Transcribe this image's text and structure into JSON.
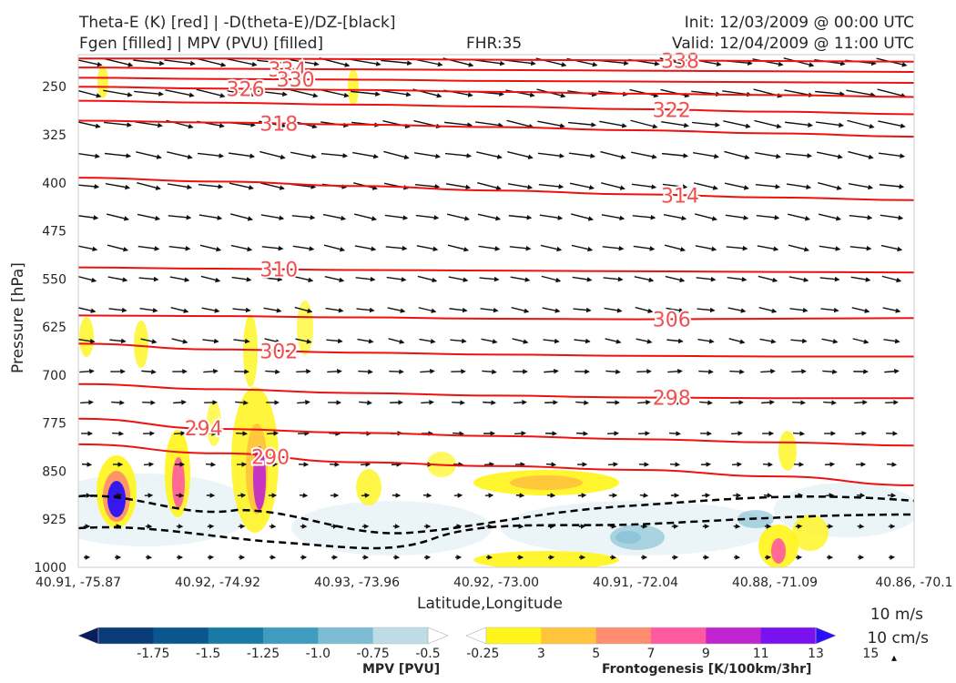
{
  "header": {
    "title_line1": "Theta-E (K) [red] | -D(theta-E)/DZ-[black]",
    "title_line2": "Fgen [filled] | MPV (PVU) [filled]",
    "fhr": "FHR:35",
    "init": "Init: 12/03/2009 @ 00:00 UTC",
    "valid": "Valid: 12/04/2009 @ 11:00 UTC"
  },
  "chart_data": {
    "type": "cross-section",
    "xlabel": "Latitude,Longitude",
    "ylabel": "Pressure [hPa]",
    "x_ticks": [
      "40.91, -75.87",
      "40.92, -74.92",
      "40.93, -73.96",
      "40.92, -73.00",
      "40.91, -72.04",
      "40.88, -71.09",
      "40.86, -70.1"
    ],
    "y_ticks": [
      250,
      325,
      400,
      475,
      550,
      625,
      700,
      775,
      850,
      925,
      1000
    ],
    "ylim": [
      200,
      1000
    ],
    "theta_e_contours": [
      {
        "label": "338",
        "p": [
          206,
          206,
          207,
          208,
          209,
          210,
          211
        ]
      },
      {
        "label": "334",
        "p": [
          220,
          222,
          223,
          224,
          225,
          226,
          227
        ]
      },
      {
        "label": "330",
        "p": [
          236,
          238,
          239,
          241,
          242,
          243,
          244
        ]
      },
      {
        "label": "326",
        "p": [
          250,
          253,
          255,
          258,
          261,
          263,
          266
        ]
      },
      {
        "label": "322",
        "p": [
          272,
          275,
          278,
          281,
          285,
          289,
          293
        ]
      },
      {
        "label": "318",
        "p": [
          303,
          306,
          309,
          313,
          318,
          323,
          328
        ]
      },
      {
        "label": "314",
        "p": [
          392,
          398,
          405,
          412,
          418,
          423,
          427
        ]
      },
      {
        "label": "310",
        "p": [
          532,
          534,
          536,
          537,
          538,
          539,
          540
        ]
      },
      {
        "label": "306",
        "p": [
          607,
          608,
          610,
          612,
          613,
          612,
          611
        ]
      },
      {
        "label": "302",
        "p": [
          651,
          660,
          665,
          668,
          670,
          671,
          671
        ]
      },
      {
        "label": "298",
        "p": [
          714,
          722,
          728,
          732,
          735,
          736,
          736
        ]
      },
      {
        "label": "294",
        "p": [
          768,
          784,
          790,
          795,
          800,
          805,
          810
        ]
      },
      {
        "label": "290",
        "p": [
          808,
          822,
          836,
          842,
          848,
          858,
          872
        ]
      }
    ],
    "colorbars": [
      {
        "label": "MPV [PVU]",
        "ticks": [
          "-1.75",
          "-1.5",
          "-1.25",
          "-1.0",
          "-0.75",
          "-0.5",
          "-0.25"
        ],
        "colors": [
          "#071d5e",
          "#083b78",
          "#0a578f",
          "#1a7aa6",
          "#3d9cc0",
          "#7ebcd4",
          "#bddce6",
          "#ffffff"
        ]
      },
      {
        "label": "Frontogenesis [K/100km/3hr]",
        "ticks": [
          "3",
          "5",
          "7",
          "9",
          "11",
          "13",
          "15"
        ],
        "colors": [
          "#ffffff",
          "#fff51a",
          "#ffc33c",
          "#ff8c6e",
          "#ff5aa0",
          "#c024d0",
          "#7a12f0",
          "#2a10f8"
        ]
      }
    ],
    "vector_scale": {
      "line1": "10 m/s",
      "line2": "10 cm/s"
    }
  }
}
